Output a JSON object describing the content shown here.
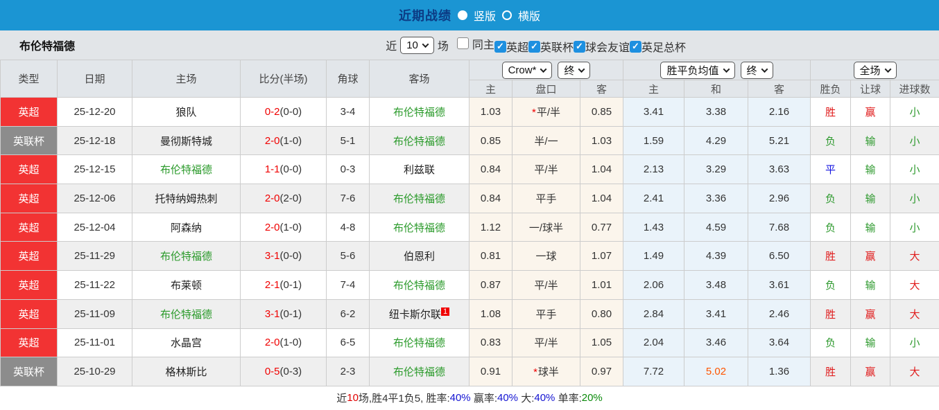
{
  "topbar": {
    "title": "近期战绩",
    "layout_options": [
      {
        "label": "竖版",
        "selected": true
      },
      {
        "label": "横版",
        "selected": false
      }
    ]
  },
  "filterbar": {
    "team_name": "布伦特福德",
    "recent_label": "近",
    "recent_count": "10",
    "recent_unit": "场",
    "checkboxes": [
      {
        "label": "同主",
        "checked": false
      },
      {
        "label": "英超",
        "checked": true
      },
      {
        "label": "英联杯",
        "checked": true
      },
      {
        "label": "球会友谊",
        "checked": true
      },
      {
        "label": "英足总杯",
        "checked": true
      }
    ]
  },
  "table": {
    "main_headers": [
      "类型",
      "日期",
      "主场",
      "比分(半场)",
      "角球",
      "客场"
    ],
    "dropdowns": {
      "handicap_source": "Crow*",
      "handicap_time": "终",
      "odds_source": "胜平负均值",
      "odds_time": "终",
      "result_scope": "全场"
    },
    "sub_headers": [
      "主",
      "盘口",
      "客",
      "主",
      "和",
      "客",
      "胜负",
      "让球",
      "进球数"
    ],
    "rows": [
      {
        "league": "英超",
        "league_color": "red",
        "date": "25-12-20",
        "home": "狼队",
        "home_focal": false,
        "score": "0-2",
        "half": "(0-0)",
        "corners": "3-4",
        "away": "布伦特福德",
        "away_focal": true,
        "away_sup": "",
        "hcap_home": "1.03",
        "hcap_star": "*",
        "hcap_line": "平/半",
        "hcap_away": "0.85",
        "avg_home": "3.41",
        "avg_draw": "3.38",
        "avg_away": "2.16",
        "res_wdl": "胜",
        "res_handicap": "赢",
        "res_goals": "小",
        "hot": []
      },
      {
        "league": "英联杯",
        "league_color": "gray",
        "date": "25-12-18",
        "home": "曼彻斯特城",
        "home_focal": false,
        "score": "2-0",
        "half": "(1-0)",
        "corners": "5-1",
        "away": "布伦特福德",
        "away_focal": true,
        "away_sup": "",
        "hcap_home": "0.85",
        "hcap_star": "",
        "hcap_line": "半/一",
        "hcap_away": "1.03",
        "avg_home": "1.59",
        "avg_draw": "4.29",
        "avg_away": "5.21",
        "res_wdl": "负",
        "res_handicap": "输",
        "res_goals": "小",
        "hot": []
      },
      {
        "league": "英超",
        "league_color": "red",
        "date": "25-12-15",
        "home": "布伦特福德",
        "home_focal": true,
        "score": "1-1",
        "half": "(0-0)",
        "corners": "0-3",
        "away": "利兹联",
        "away_focal": false,
        "away_sup": "",
        "hcap_home": "0.84",
        "hcap_star": "",
        "hcap_line": "平/半",
        "hcap_away": "1.04",
        "avg_home": "2.13",
        "avg_draw": "3.29",
        "avg_away": "3.63",
        "res_wdl": "平",
        "res_handicap": "输",
        "res_goals": "小",
        "hot": []
      },
      {
        "league": "英超",
        "league_color": "red",
        "date": "25-12-06",
        "home": "托特纳姆热刺",
        "home_focal": false,
        "score": "2-0",
        "half": "(2-0)",
        "corners": "7-6",
        "away": "布伦特福德",
        "away_focal": true,
        "away_sup": "",
        "hcap_home": "0.84",
        "hcap_star": "",
        "hcap_line": "平手",
        "hcap_away": "1.04",
        "avg_home": "2.41",
        "avg_draw": "3.36",
        "avg_away": "2.96",
        "res_wdl": "负",
        "res_handicap": "输",
        "res_goals": "小",
        "hot": []
      },
      {
        "league": "英超",
        "league_color": "red",
        "date": "25-12-04",
        "home": "阿森纳",
        "home_focal": false,
        "score": "2-0",
        "half": "(1-0)",
        "corners": "4-8",
        "away": "布伦特福德",
        "away_focal": true,
        "away_sup": "",
        "hcap_home": "1.12",
        "hcap_star": "",
        "hcap_line": "一/球半",
        "hcap_away": "0.77",
        "avg_home": "1.43",
        "avg_draw": "4.59",
        "avg_away": "7.68",
        "res_wdl": "负",
        "res_handicap": "输",
        "res_goals": "小",
        "hot": []
      },
      {
        "league": "英超",
        "league_color": "red",
        "date": "25-11-29",
        "home": "布伦特福德",
        "home_focal": true,
        "score": "3-1",
        "half": "(0-0)",
        "corners": "5-6",
        "away": "伯恩利",
        "away_focal": false,
        "away_sup": "",
        "hcap_home": "0.81",
        "hcap_star": "",
        "hcap_line": "一球",
        "hcap_away": "1.07",
        "avg_home": "1.49",
        "avg_draw": "4.39",
        "avg_away": "6.50",
        "res_wdl": "胜",
        "res_handicap": "赢",
        "res_goals": "大",
        "hot": []
      },
      {
        "league": "英超",
        "league_color": "red",
        "date": "25-11-22",
        "home": "布莱顿",
        "home_focal": false,
        "score": "2-1",
        "half": "(0-1)",
        "corners": "7-4",
        "away": "布伦特福德",
        "away_focal": true,
        "away_sup": "",
        "hcap_home": "0.87",
        "hcap_star": "",
        "hcap_line": "平/半",
        "hcap_away": "1.01",
        "avg_home": "2.06",
        "avg_draw": "3.48",
        "avg_away": "3.61",
        "res_wdl": "负",
        "res_handicap": "输",
        "res_goals": "大",
        "hot": []
      },
      {
        "league": "英超",
        "league_color": "red",
        "date": "25-11-09",
        "home": "布伦特福德",
        "home_focal": true,
        "score": "3-1",
        "half": "(0-1)",
        "corners": "6-2",
        "away": "纽卡斯尔联",
        "away_focal": false,
        "away_sup": "1",
        "hcap_home": "1.08",
        "hcap_star": "",
        "hcap_line": "平手",
        "hcap_away": "0.80",
        "avg_home": "2.84",
        "avg_draw": "3.41",
        "avg_away": "2.46",
        "res_wdl": "胜",
        "res_handicap": "赢",
        "res_goals": "大",
        "hot": []
      },
      {
        "league": "英超",
        "league_color": "red",
        "date": "25-11-01",
        "home": "水晶宫",
        "home_focal": false,
        "score": "2-0",
        "half": "(1-0)",
        "corners": "6-5",
        "away": "布伦特福德",
        "away_focal": true,
        "away_sup": "",
        "hcap_home": "0.83",
        "hcap_star": "",
        "hcap_line": "平/半",
        "hcap_away": "1.05",
        "avg_home": "2.04",
        "avg_draw": "3.46",
        "avg_away": "3.64",
        "res_wdl": "负",
        "res_handicap": "输",
        "res_goals": "小",
        "hot": []
      },
      {
        "league": "英联杯",
        "league_color": "gray",
        "date": "25-10-29",
        "home": "格林斯比",
        "home_focal": false,
        "score": "0-5",
        "half": "(0-3)",
        "corners": "2-3",
        "away": "布伦特福德",
        "away_focal": true,
        "away_sup": "",
        "hcap_home": "0.91",
        "hcap_star": "*",
        "hcap_line": "球半",
        "hcap_away": "0.97",
        "avg_home": "7.72",
        "avg_draw": "5.02",
        "avg_away": "1.36",
        "res_wdl": "胜",
        "res_handicap": "赢",
        "res_goals": "大",
        "hot": [
          "avg_draw"
        ]
      }
    ]
  },
  "summary": {
    "segments": [
      {
        "text": "近",
        "color": "#333333"
      },
      {
        "text": "10",
        "color": "#e00000"
      },
      {
        "text": "场,胜4平1负5, 胜率:",
        "color": "#333333"
      },
      {
        "text": "40%",
        "color": "#1414d2"
      },
      {
        "text": " 赢率:",
        "color": "#333333"
      },
      {
        "text": "40%",
        "color": "#1414d2"
      },
      {
        "text": " 大:",
        "color": "#333333"
      },
      {
        "text": "40%",
        "color": "#1414d2"
      },
      {
        "text": " 单率:",
        "color": "#333333"
      },
      {
        "text": "20%",
        "color": "#0a8a0a"
      }
    ]
  },
  "colors": {
    "topbar_blue": "#1b95d3",
    "title_navy": "#0c3c85",
    "league_red": "#f23333",
    "league_gray": "#8c8c8c",
    "focal_green": "#2a9a2a",
    "score_red": "#f00000",
    "hot_orange": "#ff5500",
    "draw_blue": "#1515e0"
  }
}
